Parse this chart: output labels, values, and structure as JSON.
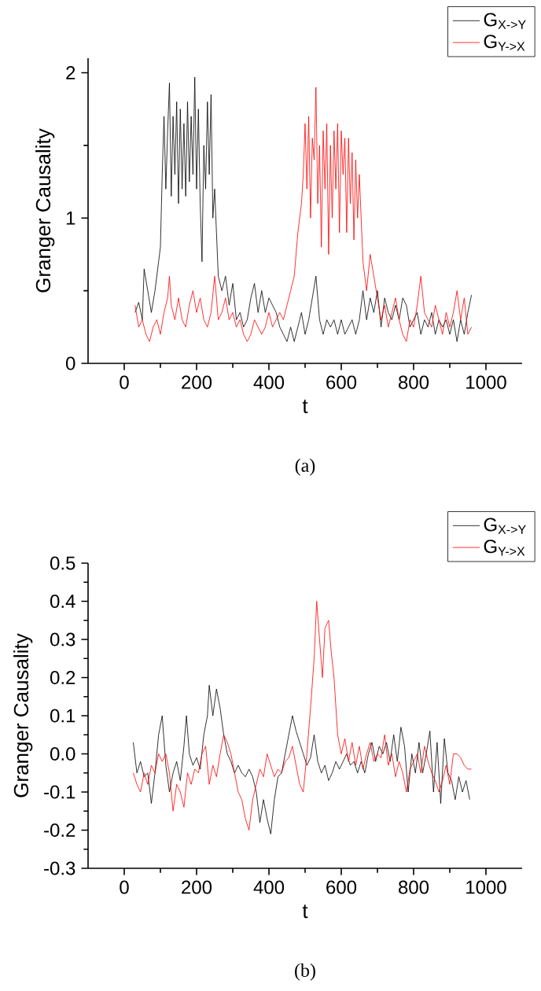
{
  "chart_data": [
    {
      "type": "line",
      "xlabel": "t",
      "ylabel": "Granger Causality",
      "xlim": [
        -100,
        1100
      ],
      "ylim": [
        0,
        2.1
      ],
      "xticks": [
        0,
        200,
        400,
        600,
        800,
        1000
      ],
      "yticks": [
        0,
        1,
        2
      ],
      "legend": "top right",
      "annotations": [
        "(a)"
      ],
      "series": [
        {
          "name": "G$_{X->Y}$",
          "color": "#000000",
          "x": [
            30,
            40,
            50,
            55,
            65,
            75,
            85,
            95,
            100,
            105,
            110,
            115,
            120,
            125,
            130,
            135,
            140,
            145,
            150,
            155,
            160,
            165,
            170,
            175,
            180,
            185,
            190,
            195,
            200,
            205,
            210,
            215,
            220,
            225,
            230,
            235,
            240,
            245,
            250,
            255,
            260,
            270,
            280,
            290,
            300,
            310,
            320,
            330,
            340,
            350,
            360,
            370,
            380,
            390,
            400,
            410,
            420,
            430,
            440,
            450,
            460,
            470,
            480,
            490,
            500,
            510,
            520,
            530,
            540,
            550,
            560,
            570,
            580,
            590,
            600,
            610,
            620,
            630,
            640,
            650,
            660,
            670,
            680,
            690,
            700,
            710,
            720,
            730,
            740,
            750,
            760,
            770,
            780,
            790,
            800,
            810,
            820,
            830,
            840,
            850,
            860,
            870,
            880,
            890,
            900,
            910,
            920,
            930,
            940,
            950,
            960
          ],
          "values": [
            0.35,
            0.42,
            0.3,
            0.65,
            0.5,
            0.35,
            0.5,
            0.7,
            0.8,
            1.3,
            1.7,
            1.2,
            1.6,
            1.93,
            1.15,
            1.7,
            1.3,
            1.8,
            1.1,
            1.75,
            1.2,
            1.65,
            1.15,
            1.8,
            1.25,
            1.7,
            1.3,
            1.97,
            1.2,
            1.75,
            1.1,
            0.7,
            1.5,
            1.2,
            1.8,
            1.3,
            1.85,
            1.0,
            1.2,
            0.9,
            0.6,
            0.5,
            0.6,
            0.4,
            0.55,
            0.3,
            0.35,
            0.25,
            0.3,
            0.45,
            0.55,
            0.35,
            0.5,
            0.35,
            0.45,
            0.4,
            0.35,
            0.25,
            0.2,
            0.15,
            0.25,
            0.15,
            0.25,
            0.35,
            0.2,
            0.3,
            0.45,
            0.6,
            0.3,
            0.2,
            0.3,
            0.25,
            0.3,
            0.2,
            0.3,
            0.2,
            0.25,
            0.3,
            0.2,
            0.3,
            0.5,
            0.3,
            0.45,
            0.35,
            0.5,
            0.25,
            0.45,
            0.35,
            0.3,
            0.4,
            0.3,
            0.45,
            0.4,
            0.25,
            0.3,
            0.35,
            0.2,
            0.3,
            0.25,
            0.35,
            0.2,
            0.3,
            0.25,
            0.3,
            0.2,
            0.3,
            0.15,
            0.3,
            0.2,
            0.35,
            0.47
          ]
        },
        {
          "name": "G$_{Y->X}$",
          "color": "#ff0000",
          "x": [
            30,
            40,
            50,
            60,
            70,
            80,
            90,
            100,
            110,
            120,
            125,
            130,
            140,
            150,
            160,
            170,
            180,
            190,
            200,
            210,
            220,
            230,
            240,
            250,
            260,
            270,
            280,
            290,
            300,
            310,
            320,
            330,
            340,
            350,
            360,
            370,
            380,
            390,
            400,
            410,
            420,
            430,
            440,
            450,
            460,
            470,
            480,
            490,
            495,
            500,
            505,
            510,
            515,
            520,
            525,
            530,
            535,
            540,
            545,
            550,
            555,
            560,
            565,
            570,
            575,
            580,
            585,
            590,
            595,
            600,
            605,
            610,
            615,
            620,
            625,
            630,
            635,
            640,
            645,
            650,
            660,
            670,
            680,
            690,
            700,
            710,
            720,
            730,
            740,
            750,
            760,
            770,
            780,
            790,
            800,
            810,
            820,
            830,
            840,
            850,
            860,
            870,
            880,
            890,
            900,
            910,
            920,
            930,
            940,
            950,
            960
          ],
          "values": [
            0.4,
            0.25,
            0.3,
            0.2,
            0.15,
            0.25,
            0.3,
            0.2,
            0.35,
            0.45,
            0.6,
            0.4,
            0.3,
            0.45,
            0.3,
            0.25,
            0.4,
            0.5,
            0.35,
            0.45,
            0.3,
            0.25,
            0.35,
            0.6,
            0.3,
            0.35,
            0.45,
            0.3,
            0.35,
            0.25,
            0.3,
            0.2,
            0.15,
            0.2,
            0.3,
            0.25,
            0.2,
            0.25,
            0.35,
            0.25,
            0.3,
            0.35,
            0.3,
            0.4,
            0.5,
            0.6,
            0.9,
            1.1,
            1.3,
            1.65,
            1.2,
            1.7,
            1.0,
            1.55,
            1.4,
            1.9,
            1.1,
            1.5,
            0.8,
            1.6,
            1.2,
            1.65,
            0.75,
            1.5,
            1.0,
            1.6,
            1.2,
            1.65,
            0.9,
            1.6,
            1.3,
            1.55,
            0.9,
            1.55,
            1.1,
            1.45,
            0.85,
            1.4,
            1.0,
            1.3,
            0.7,
            0.5,
            0.75,
            0.6,
            0.45,
            0.3,
            0.4,
            0.25,
            0.35,
            0.45,
            0.3,
            0.2,
            0.15,
            0.3,
            0.25,
            0.4,
            0.6,
            0.35,
            0.3,
            0.25,
            0.4,
            0.3,
            0.2,
            0.35,
            0.25,
            0.35,
            0.5,
            0.3,
            0.45,
            0.2,
            0.25
          ]
        }
      ]
    },
    {
      "type": "line",
      "xlabel": "t",
      "ylabel": "Granger Causality",
      "xlim": [
        -100,
        1100
      ],
      "ylim": [
        -0.3,
        0.5
      ],
      "xticks": [
        0,
        200,
        400,
        600,
        800,
        1000
      ],
      "yticks": [
        {
          "value": -0.3,
          "label": "-0.3"
        },
        {
          "value": -0.2,
          "label": "-0.2"
        },
        {
          "value": -0.1,
          "label": "-0.1"
        },
        {
          "value": 0,
          "label": "0.0"
        },
        0.1,
        0.2,
        0.3,
        0.4,
        0.5
      ],
      "legend": "top right",
      "annotations": [
        "(b)"
      ],
      "series": [
        {
          "name": "G$_{X->Y}$",
          "color": "#000000",
          "x": [
            25,
            35,
            45,
            55,
            65,
            75,
            85,
            95,
            105,
            115,
            125,
            135,
            145,
            155,
            165,
            172,
            180,
            190,
            200,
            210,
            220,
            230,
            235,
            245,
            255,
            265,
            275,
            285,
            295,
            305,
            315,
            325,
            335,
            345,
            355,
            365,
            375,
            385,
            395,
            405,
            415,
            425,
            435,
            445,
            455,
            465,
            475,
            485,
            495,
            505,
            515,
            525,
            535,
            545,
            555,
            565,
            575,
            585,
            595,
            605,
            615,
            625,
            635,
            645,
            655,
            665,
            675,
            685,
            695,
            705,
            715,
            725,
            735,
            745,
            755,
            765,
            775,
            785,
            795,
            805,
            815,
            825,
            835,
            845,
            855,
            865,
            875,
            885,
            895,
            905,
            915,
            925,
            935,
            945,
            955
          ],
          "values": [
            0.03,
            -0.05,
            -0.02,
            -0.06,
            -0.05,
            -0.13,
            -0.05,
            0.05,
            0.1,
            -0.03,
            -0.1,
            -0.05,
            -0.02,
            -0.07,
            0.02,
            0.1,
            0.0,
            -0.03,
            -0.01,
            -0.04,
            0.05,
            0.1,
            0.18,
            0.1,
            0.17,
            0.12,
            0.05,
            0.0,
            -0.02,
            -0.05,
            -0.03,
            -0.05,
            -0.06,
            -0.04,
            -0.06,
            -0.1,
            -0.18,
            -0.12,
            -0.17,
            -0.21,
            -0.12,
            -0.06,
            -0.05,
            0.0,
            0.05,
            0.1,
            0.06,
            0.03,
            0.0,
            -0.03,
            -0.01,
            0.05,
            -0.02,
            -0.05,
            -0.03,
            -0.07,
            -0.05,
            -0.02,
            -0.04,
            -0.02,
            0.0,
            -0.03,
            -0.02,
            -0.05,
            -0.02,
            -0.05,
            0.0,
            0.03,
            -0.02,
            0.02,
            0.0,
            0.03,
            -0.02,
            0.05,
            -0.02,
            0.07,
            0.02,
            -0.1,
            0.0,
            -0.05,
            0.03,
            -0.05,
            0.0,
            0.06,
            -0.1,
            0.03,
            -0.13,
            0.04,
            -0.05,
            -0.07,
            -0.12,
            -0.06,
            -0.1,
            -0.07,
            -0.12
          ]
        },
        {
          "name": "G$_{Y->X}$",
          "color": "#ff0000",
          "x": [
            25,
            35,
            45,
            55,
            65,
            75,
            85,
            95,
            105,
            115,
            125,
            135,
            145,
            155,
            165,
            175,
            185,
            195,
            205,
            215,
            225,
            235,
            245,
            255,
            265,
            275,
            285,
            295,
            305,
            315,
            325,
            335,
            345,
            355,
            365,
            375,
            385,
            395,
            405,
            415,
            425,
            435,
            445,
            455,
            465,
            475,
            485,
            495,
            505,
            515,
            525,
            532,
            540,
            548,
            555,
            565,
            572,
            580,
            590,
            600,
            610,
            620,
            630,
            640,
            650,
            660,
            670,
            680,
            690,
            700,
            710,
            720,
            730,
            740,
            750,
            760,
            770,
            780,
            790,
            800,
            810,
            820,
            830,
            840,
            850,
            860,
            870,
            880,
            890,
            900,
            910,
            920,
            930,
            940,
            950,
            960
          ],
          "values": [
            -0.05,
            -0.08,
            -0.1,
            -0.05,
            -0.08,
            -0.03,
            -0.05,
            0.0,
            -0.02,
            0.0,
            -0.05,
            -0.15,
            -0.08,
            -0.1,
            -0.14,
            -0.05,
            -0.08,
            -0.04,
            -0.05,
            0.0,
            0.02,
            -0.08,
            -0.03,
            -0.06,
            0.0,
            0.05,
            0.03,
            0.0,
            -0.05,
            -0.1,
            -0.12,
            -0.17,
            -0.2,
            -0.12,
            -0.08,
            -0.04,
            -0.06,
            0.0,
            -0.03,
            -0.06,
            -0.04,
            -0.05,
            -0.02,
            -0.01,
            0.02,
            -0.03,
            -0.08,
            -0.1,
            0.0,
            0.12,
            0.25,
            0.4,
            0.3,
            0.2,
            0.33,
            0.35,
            0.27,
            0.2,
            0.05,
            0.0,
            0.04,
            -0.02,
            0.03,
            -0.03,
            0.02,
            -0.04,
            0.0,
            0.03,
            -0.02,
            0.0,
            -0.01,
            0.05,
            -0.03,
            0.0,
            -0.06,
            -0.02,
            -0.05,
            -0.1,
            -0.04,
            -0.02,
            0.0,
            -0.05,
            0.02,
            -0.02,
            -0.05,
            -0.07,
            -0.1,
            -0.07,
            -0.03,
            -0.08,
            0.0,
            0.0,
            -0.01,
            -0.03,
            -0.04,
            -0.04
          ]
        }
      ]
    }
  ]
}
